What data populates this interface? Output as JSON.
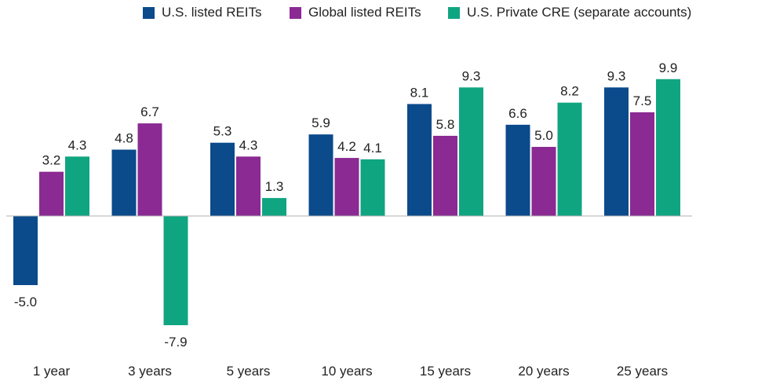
{
  "chart_data": {
    "type": "bar",
    "title": "",
    "xlabel": "",
    "ylabel": "",
    "categories": [
      "1 year",
      "3 years",
      "5 years",
      "10 years",
      "15 years",
      "20 years",
      "25 years"
    ],
    "series": [
      {
        "name": "U.S. listed REITs",
        "color": "#0b4a8b",
        "values": [
          -5.0,
          4.8,
          5.3,
          5.9,
          8.1,
          6.6,
          9.3
        ]
      },
      {
        "name": "Global listed REITs",
        "color": "#8a2a92",
        "values": [
          3.2,
          6.7,
          4.3,
          4.2,
          5.8,
          5.0,
          7.5
        ]
      },
      {
        "name": "U.S. Private CRE (separate accounts)",
        "color": "#10a581",
        "values": [
          4.3,
          -7.9,
          1.3,
          4.1,
          9.3,
          8.2,
          9.9
        ]
      }
    ],
    "ylim": [
      -8.5,
      10.5
    ],
    "grid": false,
    "legend_position": "top-right",
    "data_labels": true,
    "zero_line_color": "#b0b0b0"
  }
}
